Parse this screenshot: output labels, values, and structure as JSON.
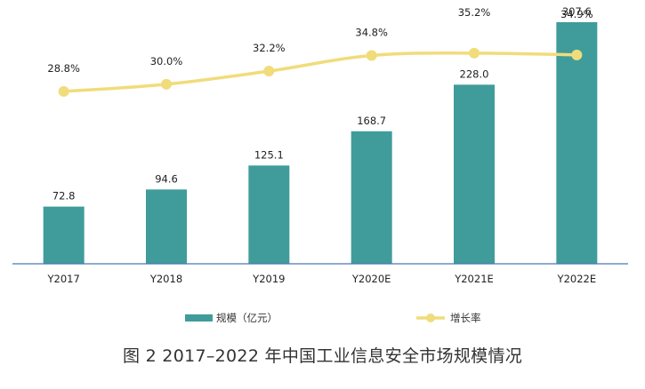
{
  "chart_data": {
    "type": "bar+line",
    "categories": [
      "Y2017",
      "Y2018",
      "Y2019",
      "Y2020E",
      "Y2021E",
      "Y2022E"
    ],
    "series": [
      {
        "name": "规模（亿元）",
        "type": "bar",
        "values": [
          72.8,
          94.6,
          125.1,
          168.7,
          228.0,
          307.6
        ],
        "labels": [
          "72.8",
          "94.6",
          "125.1",
          "168.7",
          "228.0",
          "307.6"
        ],
        "color": "#3f9c9a"
      },
      {
        "name": "增长率",
        "type": "line",
        "values": [
          28.8,
          30.0,
          32.2,
          34.8,
          35.2,
          34.9
        ],
        "labels": [
          "28.8%",
          "30.0%",
          "32.2%",
          "34.8%",
          "35.2%",
          "34.9%"
        ],
        "color": "#f1dc7b"
      }
    ],
    "bar_axis_range": [
      0,
      320
    ],
    "line_axis_range": [
      0,
      42
    ],
    "grid": false,
    "legend_position": "bottom"
  },
  "legend": {
    "bar_label": "规模（亿元）",
    "line_label": "增长率"
  },
  "caption": "图 2  2017–2022 年中国工业信息安全市场规模情况"
}
